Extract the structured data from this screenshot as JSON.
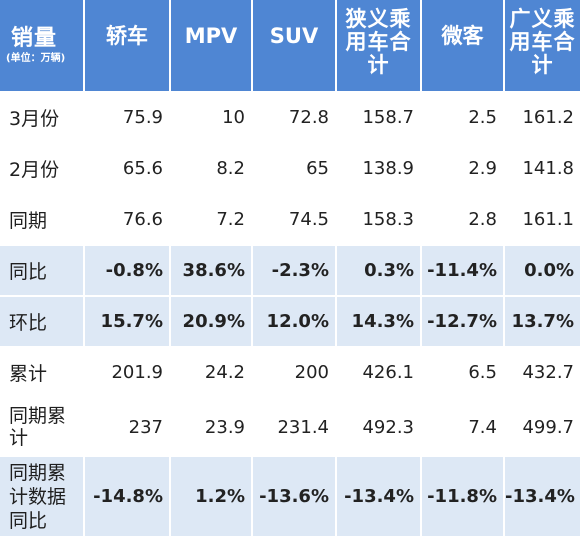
{
  "header": {
    "corner_title": "销量",
    "corner_unit": "(单位：万辆)",
    "columns": [
      "轿车",
      "MPV",
      "SUV",
      "狭义乘用车合计",
      "微客",
      "广义乘用车合计"
    ]
  },
  "rows": [
    {
      "label": "3月份",
      "values": [
        "75.9",
        "10",
        "72.8",
        "158.7",
        "2.5",
        "161.2"
      ]
    },
    {
      "label": "2月份",
      "values": [
        "65.6",
        "8.2",
        "65",
        "138.9",
        "2.9",
        "141.8"
      ]
    },
    {
      "label": "同期",
      "values": [
        "76.6",
        "7.2",
        "74.5",
        "158.3",
        "2.8",
        "161.1"
      ]
    },
    {
      "label": "同比",
      "values": [
        "-0.8%",
        "38.6%",
        "-2.3%",
        "0.3%",
        "-11.4%",
        "0.0%"
      ]
    },
    {
      "label": "环比",
      "values": [
        "15.7%",
        "20.9%",
        "12.0%",
        "14.3%",
        "-12.7%",
        "13.7%"
      ]
    },
    {
      "label": "累计",
      "values": [
        "201.9",
        "24.2",
        "200",
        "426.1",
        "6.5",
        "432.7"
      ]
    },
    {
      "label": "同期累计",
      "values": [
        "237",
        "23.9",
        "231.4",
        "492.3",
        "7.4",
        "499.7"
      ]
    },
    {
      "label": "同期累计数据同比",
      "values": [
        "-14.8%",
        "1.2%",
        "-13.6%",
        "-13.4%",
        "-11.8%",
        "-13.4%"
      ]
    }
  ],
  "colors": {
    "header_bg": "#4f86d3",
    "shaded_row_bg": "#dde8f5",
    "positive_pct": "#1f6fbd",
    "negative_pct": "#21a34e"
  }
}
